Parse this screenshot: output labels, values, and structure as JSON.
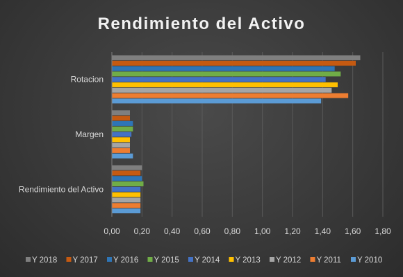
{
  "chart_data": {
    "type": "bar",
    "orientation": "horizontal",
    "title": "Rendimiento del Activo",
    "categories": [
      "Rotacion",
      "Margen",
      "Rendimiento del Activo"
    ],
    "xlim": [
      0,
      1.8
    ],
    "x_ticks": [
      "0,00",
      "0,20",
      "0,40",
      "0,60",
      "0,80",
      "1,00",
      "1,20",
      "1,40",
      "1,60",
      "1,80"
    ],
    "grid": true,
    "legend_position": "bottom",
    "series": [
      {
        "name": "Y 2018",
        "color": "#7f7f7f",
        "values": [
          1.65,
          0.12,
          0.2
        ]
      },
      {
        "name": "Y 2017",
        "color": "#c55a11",
        "values": [
          1.62,
          0.12,
          0.19
        ]
      },
      {
        "name": "Y 2016",
        "color": "#2e75b6",
        "values": [
          1.48,
          0.14,
          0.2
        ]
      },
      {
        "name": "Y 2015",
        "color": "#70ad47",
        "values": [
          1.52,
          0.14,
          0.21
        ]
      },
      {
        "name": "Y 2014",
        "color": "#4472c4",
        "values": [
          1.42,
          0.13,
          0.19
        ]
      },
      {
        "name": "Y 2013",
        "color": "#ffc000",
        "values": [
          1.5,
          0.12,
          0.19
        ]
      },
      {
        "name": "Y 2012",
        "color": "#a5a5a5",
        "values": [
          1.46,
          0.12,
          0.19
        ]
      },
      {
        "name": "Y 2011",
        "color": "#ed7d31",
        "values": [
          1.57,
          0.12,
          0.19
        ]
      },
      {
        "name": "Y 2010",
        "color": "#5b9bd5",
        "values": [
          1.39,
          0.14,
          0.19
        ]
      }
    ]
  }
}
